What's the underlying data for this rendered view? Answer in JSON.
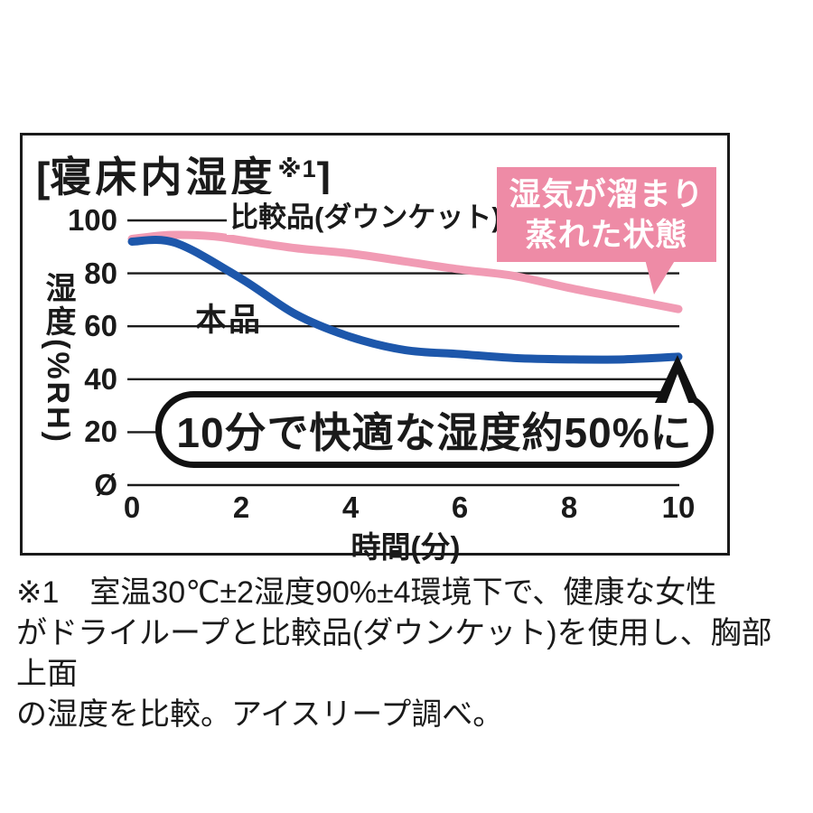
{
  "title": {
    "open": "[",
    "text": "寝床内湿度",
    "sup": "※1",
    "close": "]"
  },
  "colors": {
    "ink": "#1a1a1a",
    "blue_line": "#1d57ab",
    "pink_line": "#f19bb4",
    "callout_pink": "#ee8ba6"
  },
  "callout": {
    "line1": "湿気が溜まり",
    "line2": "蒸れた状態"
  },
  "bubble": {
    "text": "10分で快適な湿度約50%に"
  },
  "footnote": {
    "text": "※1　室温30℃±2湿度90%±4環境下で、健康な女性\nがドライループと比較品(ダウンケット)を使用し、胸部上面\nの湿度を比較。アイスリープ調べ。"
  },
  "chart_data": {
    "type": "line",
    "title": "寝床内湿度",
    "xlabel": "時間(分)",
    "ylabel": "湿度(%RH)",
    "xlim": [
      0,
      10
    ],
    "ylim": [
      0,
      100
    ],
    "grid": "horizontal-only",
    "legend_position": "inline-labels",
    "xticks": {
      "values": [
        0,
        2,
        4,
        6,
        8,
        10
      ],
      "labels": [
        "0",
        "2",
        "4",
        "6",
        "8",
        "10"
      ]
    },
    "yticks": {
      "values": [
        100,
        80,
        60,
        40,
        20,
        0
      ],
      "labels": [
        "100",
        "80",
        "60",
        "40",
        "20",
        "Ø"
      ]
    },
    "series": [
      {
        "name": "比較品(ダウンケット)",
        "color": "#f19bb4",
        "x": [
          0,
          0.7,
          1.5,
          2,
          3,
          4,
          5,
          6,
          7,
          8,
          9,
          10
        ],
        "values": [
          93,
          94.5,
          94,
          92.5,
          89.5,
          87.5,
          84.5,
          81.5,
          79,
          74.5,
          70.5,
          66.5
        ]
      },
      {
        "name": "本品",
        "color": "#1d57ab",
        "x": [
          0,
          0.8,
          2,
          3,
          4,
          5,
          6,
          7,
          8,
          9,
          10
        ],
        "values": [
          92,
          91.5,
          78,
          64.5,
          56,
          51,
          49.5,
          48,
          47.5,
          47.5,
          48.5
        ]
      }
    ],
    "annotations": [
      {
        "type": "callout",
        "text": "湿気が溜まり蒸れた状態",
        "attached_to": "比較品(ダウンケット)"
      },
      {
        "type": "speech-bubble",
        "text": "10分で快適な湿度約50%に",
        "attached_to": "本品 at 10分"
      }
    ]
  }
}
